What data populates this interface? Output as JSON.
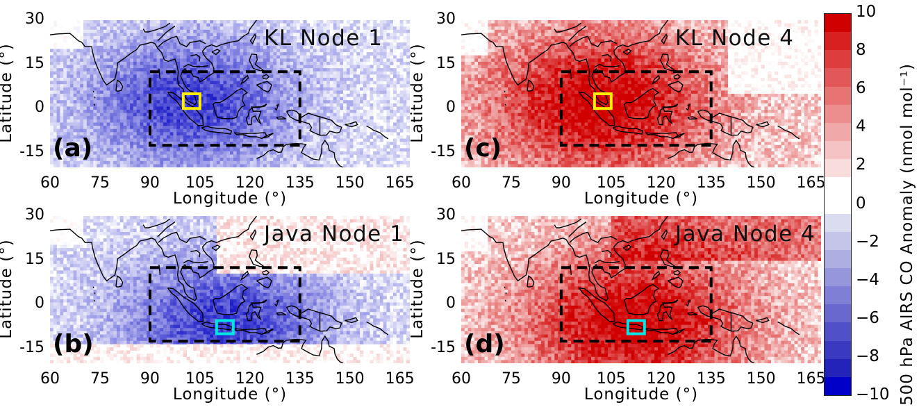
{
  "panels": [
    {
      "letter": "(a)",
      "title": "KL Node 1",
      "site": "yellow-box",
      "sign": -1
    },
    {
      "letter": "(c)",
      "title": "KL Node 4",
      "site": "yellow-box",
      "sign": 1
    },
    {
      "letter": "(b)",
      "title": "Java Node 1",
      "site": "cyan-box",
      "sign": -1
    },
    {
      "letter": "(d)",
      "title": "Java Node 4",
      "site": "cyan-box",
      "sign": 1
    }
  ],
  "axes": {
    "xlabel": "Longitude (°)",
    "ylabel": "Latitude (°)",
    "xticks": [
      "60",
      "75",
      "90",
      "105",
      "120",
      "135",
      "150",
      "165"
    ],
    "yticks": [
      "30",
      "15",
      "0",
      "-15"
    ]
  },
  "colorbar": {
    "label": "500 hPa AIRS CO Anomaly (nmol mol⁻¹)",
    "ticks": [
      "10",
      "8",
      "6",
      "4",
      "2",
      "0",
      "−2",
      "−4",
      "−6",
      "−8",
      "−10"
    ],
    "range": [
      -10,
      10
    ],
    "colors": [
      "#d10000",
      "#d82020",
      "#dd3d3d",
      "#e25858",
      "#e77373",
      "#ec8e8e",
      "#f0a8a8",
      "#f5c3c3",
      "#f9dcdc",
      "#ffffff",
      "#ffffff",
      "#dcdcf0",
      "#c5c5ea",
      "#aeaee3",
      "#9696dc",
      "#7f7fd5",
      "#6868ce",
      "#5151c7",
      "#3a3ac0",
      "#2323b9",
      "#0000c8"
    ]
  },
  "colors": {
    "box": "#000000",
    "kl_site": "#ffee00",
    "java_site": "#00e5e5",
    "coast": "#000000"
  }
}
